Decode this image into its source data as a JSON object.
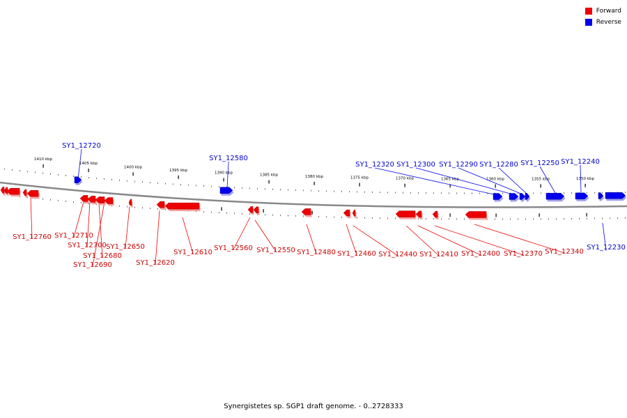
{
  "legend": {
    "forward": {
      "label": "Forward",
      "color": "#ee0000"
    },
    "reverse": {
      "label": "Reverse",
      "color": "#0000ee"
    }
  },
  "caption": "Synergistetes sp. SGP1 draft genome. - 0..2728333",
  "kbp_ticks": [
    "1410 kbp",
    "1405 kbp",
    "1400 kbp",
    "1395 kbp",
    "1390 kbp",
    "1385 kbp",
    "1380 kbp",
    "1375 kbp",
    "1370 kbp",
    "1365 kbp",
    "1360 kbp",
    "1355 kbp",
    "1350 kbp"
  ],
  "genes_reverse": [
    {
      "id": "SY1_12720"
    },
    {
      "id": "SY1_12580"
    },
    {
      "id": "SY1_12320"
    },
    {
      "id": "SY1_12300"
    },
    {
      "id": "SY1_12290"
    },
    {
      "id": "SY1_12280"
    },
    {
      "id": "SY1_12250"
    },
    {
      "id": "SY1_12240"
    },
    {
      "id": "SY1_12230"
    }
  ],
  "genes_forward": [
    {
      "id": "SY1_12760"
    },
    {
      "id": "SY1_12710"
    },
    {
      "id": "SY1_12700"
    },
    {
      "id": "SY1_12680"
    },
    {
      "id": "SY1_12690"
    },
    {
      "id": "SY1_12650"
    },
    {
      "id": "SY1_12620"
    },
    {
      "id": "SY1_12610"
    },
    {
      "id": "SY1_12560"
    },
    {
      "id": "SY1_12550"
    },
    {
      "id": "SY1_12480"
    },
    {
      "id": "SY1_12460"
    },
    {
      "id": "SY1_12440"
    },
    {
      "id": "SY1_12410"
    },
    {
      "id": "SY1_12400"
    },
    {
      "id": "SY1_12370"
    },
    {
      "id": "SY1_12340"
    }
  ]
}
